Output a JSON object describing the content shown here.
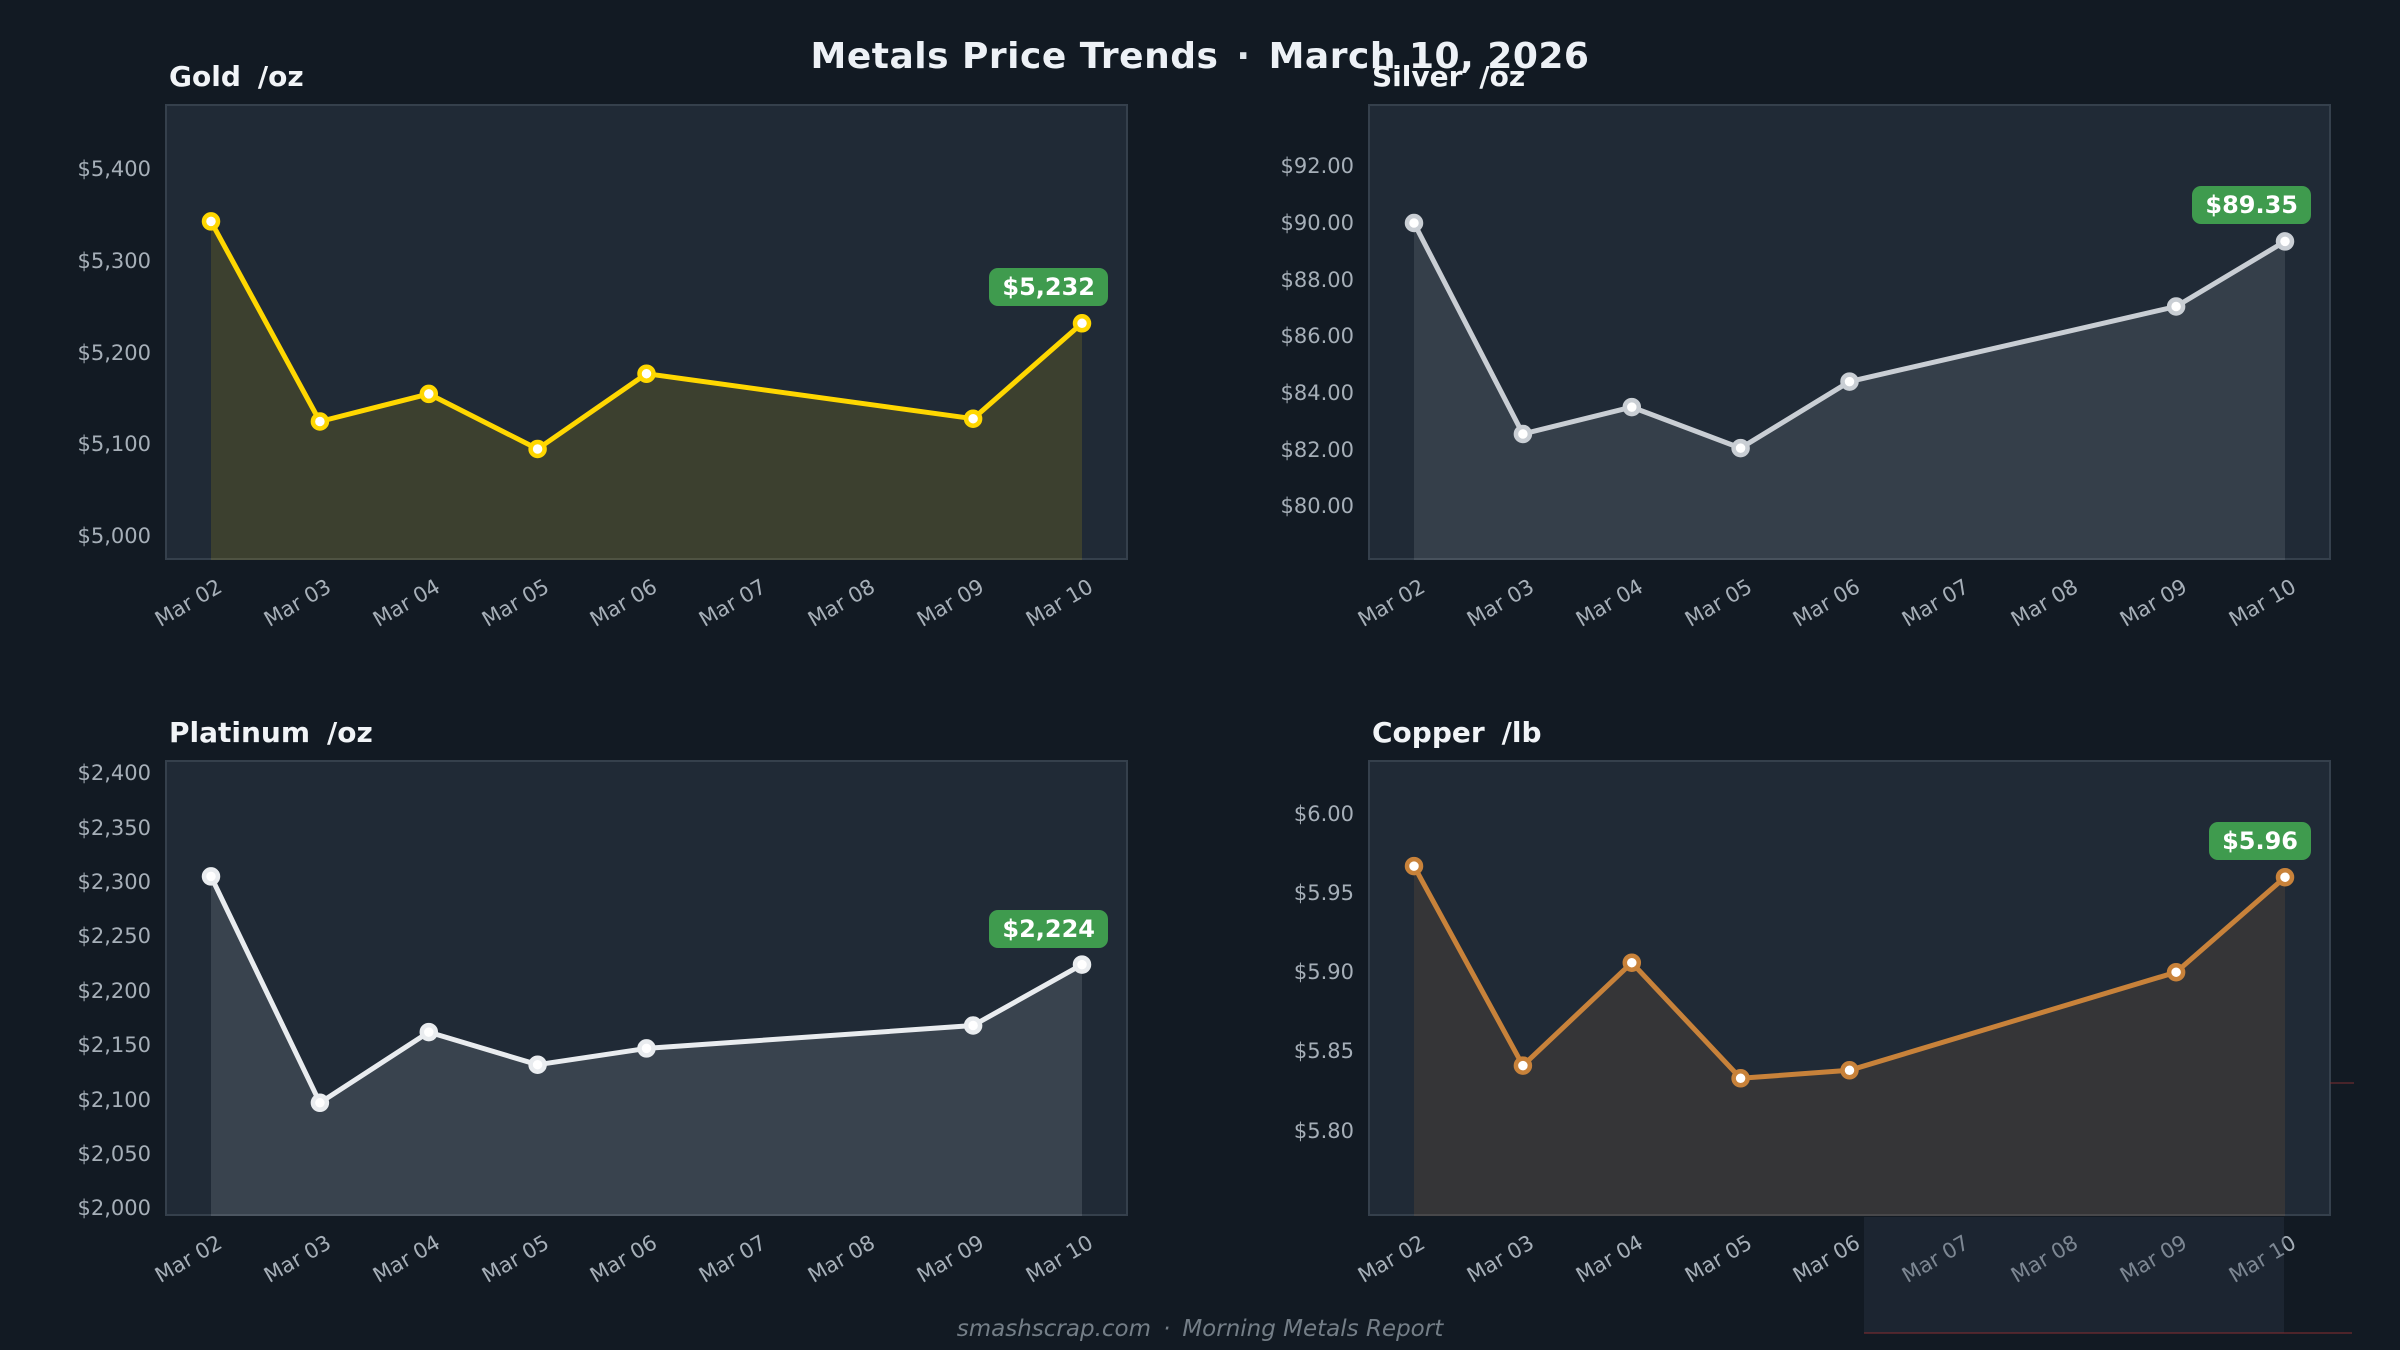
{
  "page": {
    "title": "Metals Price Trends",
    "title_separator": "·",
    "title_date": "March 10, 2026",
    "footer": {
      "site": "smashscrap.com",
      "separator": "·",
      "report": "Morning Metals Report"
    },
    "colors": {
      "background": "#121a23",
      "panel": "#202a36",
      "panel_border": "#35404c",
      "axis_text": "#a6afb8",
      "title_text": "#f1f4f7",
      "badge_green": "#3f9b4e",
      "footer_text": "#747e87"
    }
  },
  "chart_data": [
    {
      "id": "gold",
      "type": "line",
      "title": "Gold",
      "unit": "/oz",
      "line_color": "#ffd700",
      "fill_color": "rgba(255,215,0,0.13)",
      "marker_fill": "#ffffff",
      "categories": [
        "Mar 02",
        "Mar 03",
        "Mar 04",
        "Mar 05",
        "Mar 06",
        "Mar 07",
        "Mar 08",
        "Mar 09",
        "Mar 10"
      ],
      "series": [
        {
          "name": "Gold",
          "points": [
            {
              "date": "Mar 02",
              "value": 5343
            },
            {
              "date": "Mar 03",
              "value": 5125
            },
            {
              "date": "Mar 04",
              "value": 5155
            },
            {
              "date": "Mar 05",
              "value": 5095
            },
            {
              "date": "Mar 06",
              "value": 5177
            },
            {
              "date": "Mar 09",
              "value": 5128
            },
            {
              "date": "Mar 10",
              "value": 5232
            }
          ]
        }
      ],
      "badge": {
        "label": "$5,232",
        "color": "#3f9b4e"
      },
      "y_ticks": [
        {
          "v": 5000,
          "label": "$5,000"
        },
        {
          "v": 5100,
          "label": "$5,100"
        },
        {
          "v": 5200,
          "label": "$5,200"
        },
        {
          "v": 5300,
          "label": "$5,300"
        },
        {
          "v": 5400,
          "label": "$5,400"
        }
      ],
      "ylim": [
        4974,
        5471
      ],
      "grid": false,
      "legend": false
    },
    {
      "id": "silver",
      "type": "line",
      "title": "Silver",
      "unit": "/oz",
      "line_color": "#c9ced4",
      "fill_color": "rgba(201,206,212,0.13)",
      "marker_fill": "#ffffff",
      "categories": [
        "Mar 02",
        "Mar 03",
        "Mar 04",
        "Mar 05",
        "Mar 06",
        "Mar 07",
        "Mar 08",
        "Mar 09",
        "Mar 10"
      ],
      "series": [
        {
          "name": "Silver",
          "points": [
            {
              "date": "Mar 02",
              "value": 90.0
            },
            {
              "date": "Mar 03",
              "value": 82.55
            },
            {
              "date": "Mar 04",
              "value": 83.5
            },
            {
              "date": "Mar 05",
              "value": 82.05
            },
            {
              "date": "Mar 06",
              "value": 84.4
            },
            {
              "date": "Mar 09",
              "value": 87.05
            },
            {
              "date": "Mar 10",
              "value": 89.35
            }
          ]
        }
      ],
      "badge": {
        "label": "$89.35",
        "color": "#3f9b4e"
      },
      "y_ticks": [
        {
          "v": 80,
          "label": "$80.00"
        },
        {
          "v": 82,
          "label": "$82.00"
        },
        {
          "v": 84,
          "label": "$84.00"
        },
        {
          "v": 86,
          "label": "$86.00"
        },
        {
          "v": 88,
          "label": "$88.00"
        },
        {
          "v": 90,
          "label": "$90.00"
        },
        {
          "v": 92,
          "label": "$92.00"
        }
      ],
      "ylim": [
        78.1,
        94.2
      ],
      "grid": false,
      "legend": false
    },
    {
      "id": "platinum",
      "type": "line",
      "title": "Platinum",
      "unit": "/oz",
      "line_color": "#e9ecef",
      "fill_color": "rgba(233,236,239,0.13)",
      "marker_fill": "#ffffff",
      "categories": [
        "Mar 02",
        "Mar 03",
        "Mar 04",
        "Mar 05",
        "Mar 06",
        "Mar 07",
        "Mar 08",
        "Mar 09",
        "Mar 10"
      ],
      "series": [
        {
          "name": "Platinum",
          "points": [
            {
              "date": "Mar 02",
              "value": 2305
            },
            {
              "date": "Mar 03",
              "value": 2097
            },
            {
              "date": "Mar 04",
              "value": 2162
            },
            {
              "date": "Mar 05",
              "value": 2132
            },
            {
              "date": "Mar 06",
              "value": 2147
            },
            {
              "date": "Mar 09",
              "value": 2168
            },
            {
              "date": "Mar 10",
              "value": 2224
            }
          ]
        }
      ],
      "badge": {
        "label": "$2,224",
        "color": "#3f9b4e"
      },
      "y_ticks": [
        {
          "v": 2000,
          "label": "$2,000"
        },
        {
          "v": 2050,
          "label": "$2,050"
        },
        {
          "v": 2100,
          "label": "$2,100"
        },
        {
          "v": 2150,
          "label": "$2,150"
        },
        {
          "v": 2200,
          "label": "$2,200"
        },
        {
          "v": 2250,
          "label": "$2,250"
        },
        {
          "v": 2300,
          "label": "$2,300"
        },
        {
          "v": 2350,
          "label": "$2,350"
        },
        {
          "v": 2400,
          "label": "$2,400"
        }
      ],
      "ylim": [
        1993,
        2412
      ],
      "grid": false,
      "legend": false
    },
    {
      "id": "copper",
      "type": "line",
      "title": "Copper",
      "unit": "/lb",
      "line_color": "#c8823a",
      "fill_color": "rgba(200,130,58,0.13)",
      "marker_fill": "#ffffff",
      "categories": [
        "Mar 02",
        "Mar 03",
        "Mar 04",
        "Mar 05",
        "Mar 06",
        "Mar 07",
        "Mar 08",
        "Mar 09",
        "Mar 10"
      ],
      "series": [
        {
          "name": "Copper",
          "points": [
            {
              "date": "Mar 02",
              "value": 5.967
            },
            {
              "date": "Mar 03",
              "value": 5.841
            },
            {
              "date": "Mar 04",
              "value": 5.906
            },
            {
              "date": "Mar 05",
              "value": 5.833
            },
            {
              "date": "Mar 06",
              "value": 5.838
            },
            {
              "date": "Mar 09",
              "value": 5.9
            },
            {
              "date": "Mar 10",
              "value": 5.96
            }
          ]
        }
      ],
      "badge": {
        "label": "$5.96",
        "color": "#3f9b4e"
      },
      "y_ticks": [
        {
          "v": 5.8,
          "label": "$5.80"
        },
        {
          "v": 5.85,
          "label": "$5.85"
        },
        {
          "v": 5.9,
          "label": "$5.90"
        },
        {
          "v": 5.95,
          "label": "$5.95"
        },
        {
          "v": 6.0,
          "label": "$6.00"
        }
      ],
      "ylim": [
        5.746,
        6.034
      ],
      "grid": false,
      "legend": false
    }
  ]
}
